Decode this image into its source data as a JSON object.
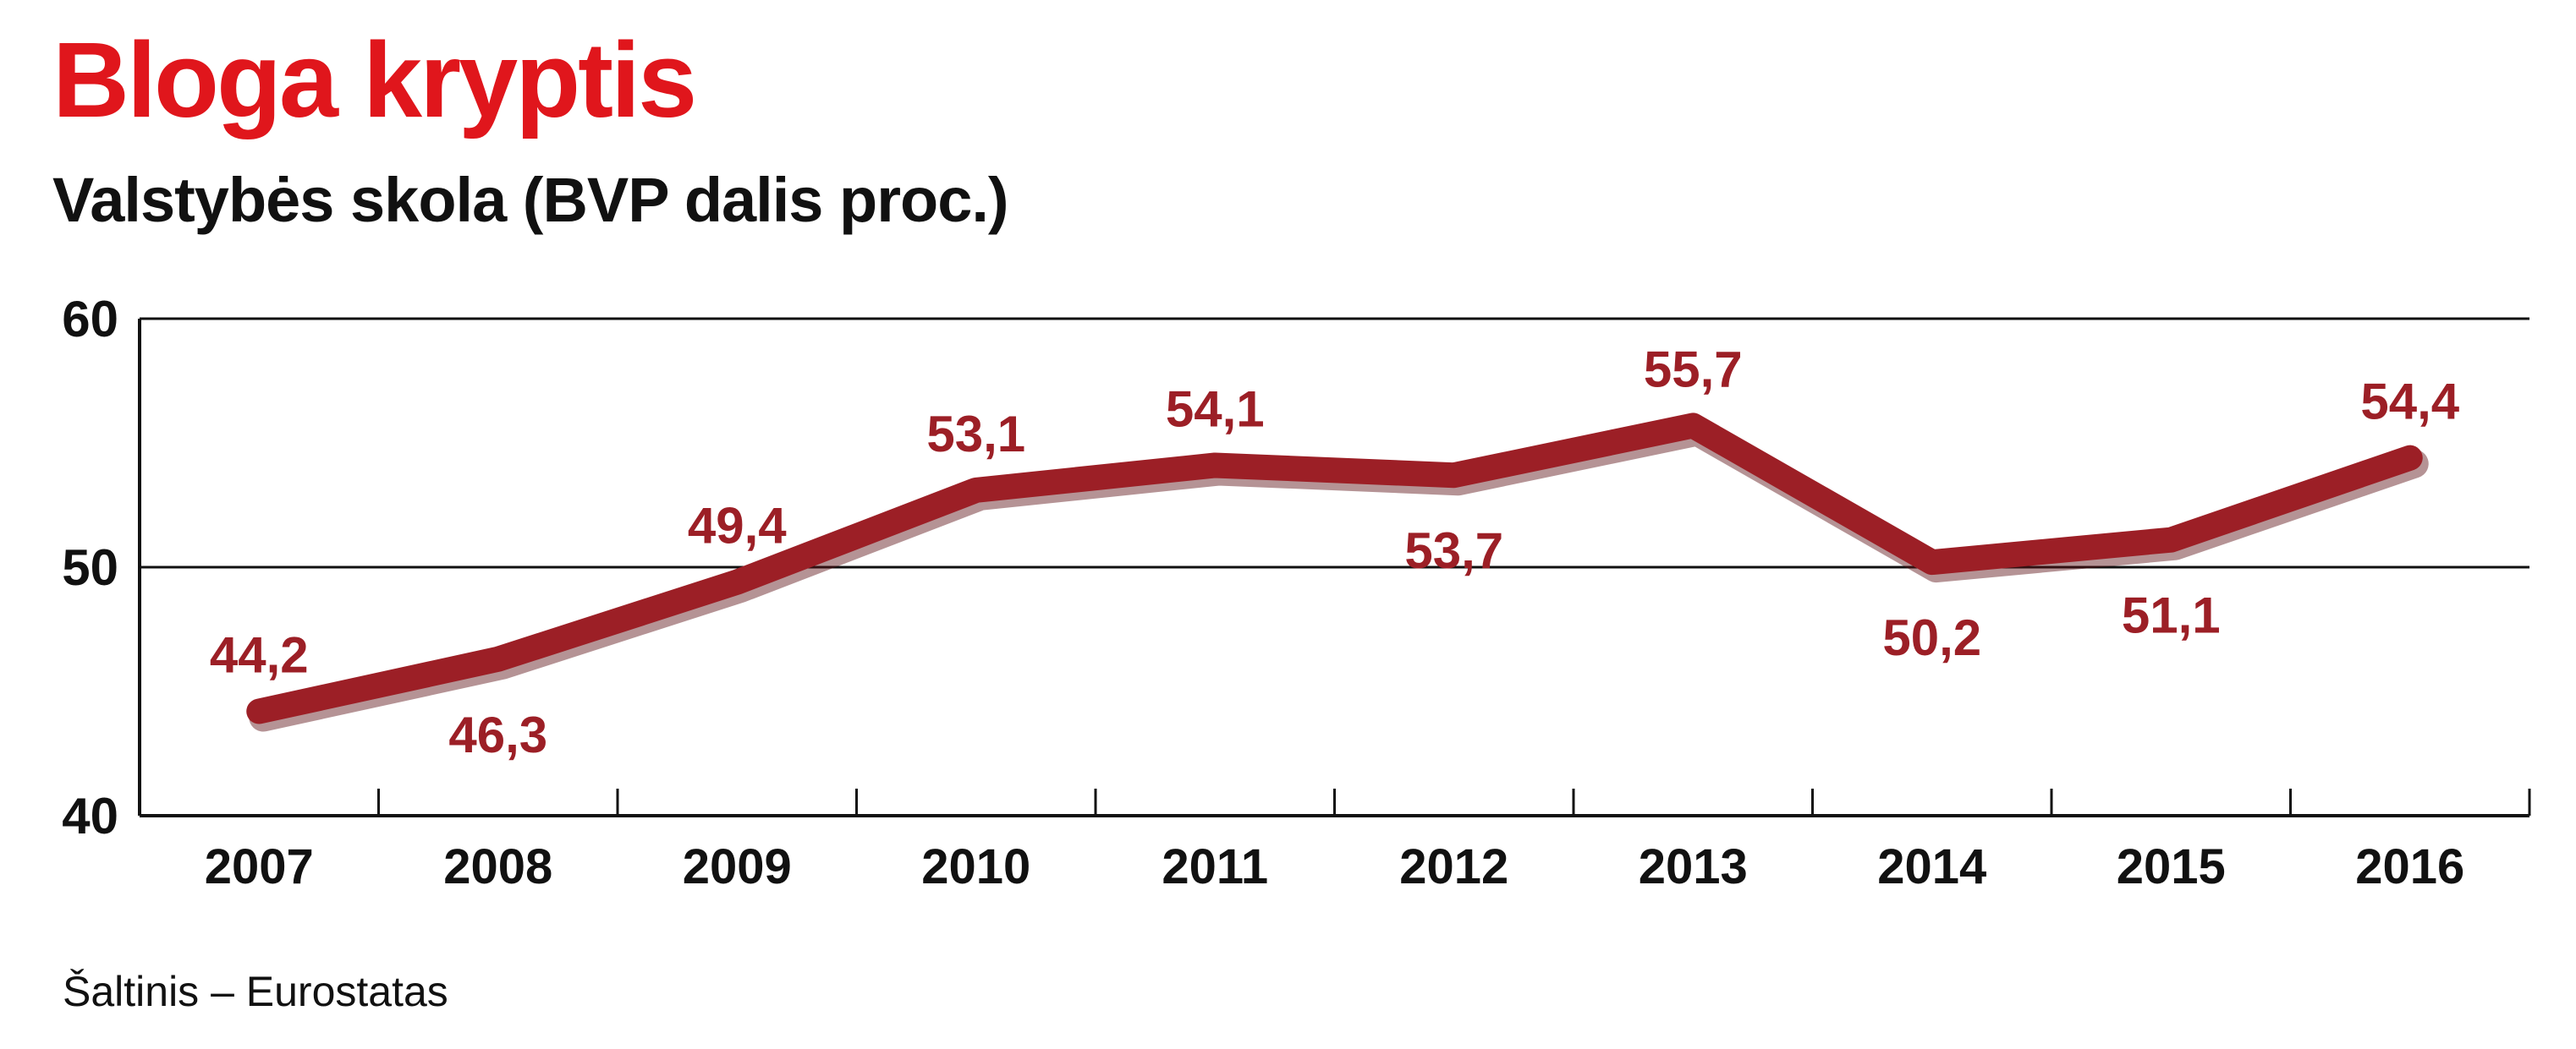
{
  "header": {
    "title": "Bloga kryptis",
    "subtitle": "Valstybės skola (BVP dalis proc.)"
  },
  "footer": {
    "source": "Šaltinis – Eurostatas"
  },
  "colors": {
    "title": "#e0161c",
    "line": "#9c1f26",
    "line_shadow": "#5a1014",
    "data_label": "#9c1f26",
    "text": "#111111",
    "gridline": "#111111"
  },
  "chart_data": {
    "type": "line",
    "title": "Bloga kryptis",
    "subtitle": "Valstybės skola (BVP dalis proc.)",
    "xlabel": "",
    "ylabel": "",
    "categories": [
      "2007",
      "2008",
      "2009",
      "2010",
      "2011",
      "2012",
      "2013",
      "2014",
      "2015",
      "2016"
    ],
    "series": [
      {
        "name": "Valstybės skola (BVP dalis proc.)",
        "values": [
          44.2,
          46.3,
          49.4,
          53.1,
          54.1,
          53.7,
          55.7,
          50.2,
          51.1,
          54.4
        ],
        "labels": [
          "44,2",
          "46,3",
          "49,4",
          "53,1",
          "54,1",
          "53,7",
          "55,7",
          "50,2",
          "51,1",
          "54,4"
        ],
        "label_positions": [
          "above",
          "below",
          "above",
          "above",
          "above",
          "below",
          "above",
          "below",
          "below",
          "above"
        ]
      }
    ],
    "ylim": [
      40,
      60
    ],
    "yticks": [
      40,
      50,
      60
    ],
    "ytick_labels": [
      "40",
      "50",
      "60"
    ],
    "grid": "horizontal",
    "legend": "none",
    "source": "Šaltinis – Eurostatas"
  }
}
